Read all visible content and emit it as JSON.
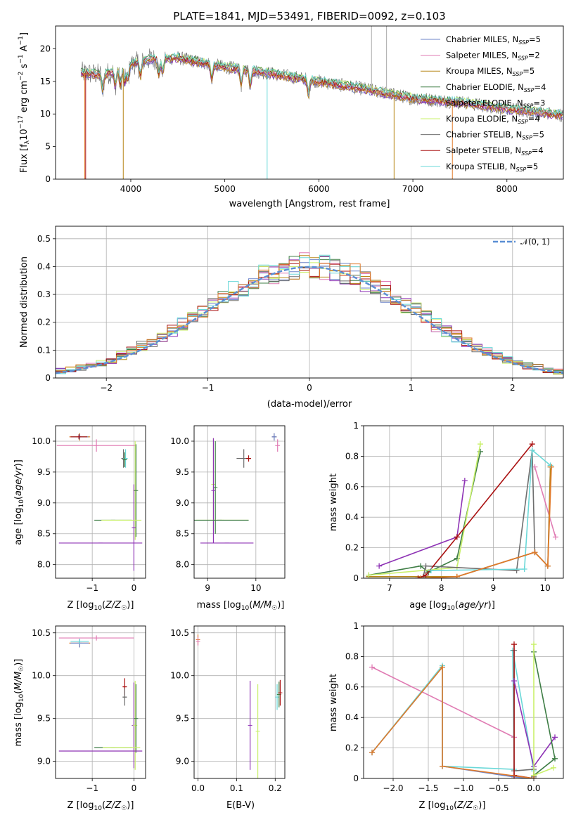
{
  "title": "PLATE=1841, MJD=53491, FIBERID=0092, z=0.103",
  "colors": {
    "chabrier_miles": "#6b83c8",
    "salpeter_miles": "#e07bb3",
    "kroupa_miles": "#b8871a",
    "chabrier_elodie": "#3e7d45",
    "salpeter_elodie": "#8e33b5",
    "kroupa_elodie": "#c9f06a",
    "chabrier_stelib": "#6e6e6e",
    "salpeter_stelib": "#aa1111",
    "kroupa_stelib": "#6ad8d8",
    "gaussian": "#5b8fd4",
    "orange_curve": "#e07a2a"
  },
  "chart_data": [
    {
      "id": "spectrum",
      "type": "line",
      "xlabel": "wavelength [Angstrom, rest frame]",
      "ylabel": "Flux [f_λ 10^-17 erg cm^-2 s^-1 A^-1]",
      "xlim": [
        3200,
        8600
      ],
      "ylim": [
        0,
        23.5
      ],
      "xticks": [
        4000,
        5000,
        6000,
        7000,
        8000
      ],
      "yticks": [
        0,
        5,
        10,
        15,
        20
      ],
      "grid": false,
      "legend_position": "top-right",
      "legend": [
        {
          "label": "Chabrier MILES, N",
          "sub": "SSP",
          "tail": "=5",
          "color": "#6b83c8"
        },
        {
          "label": "Salpeter MILES, N",
          "sub": "SSP",
          "tail": "=2",
          "color": "#e07bb3"
        },
        {
          "label": "Kroupa MILES, N",
          "sub": "SSP",
          "tail": "=5",
          "color": "#b8871a"
        },
        {
          "label": "Chabrier ELODIE, N",
          "sub": "SSP",
          "tail": "=4",
          "color": "#3e7d45"
        },
        {
          "label": "Salpeter ELODIE, N",
          "sub": "SSP",
          "tail": "=3",
          "color": "#8e33b5"
        },
        {
          "label": "Kroupa ELODIE, N",
          "sub": "SSP",
          "tail": "=4",
          "color": "#c9f06a"
        },
        {
          "label": "Chabrier STELIB, N",
          "sub": "SSP",
          "tail": "=5",
          "color": "#6e6e6e"
        },
        {
          "label": "Salpeter STELIB, N",
          "sub": "SSP",
          "tail": "=4",
          "color": "#aa1111"
        },
        {
          "label": "Kroupa STELIB, N",
          "sub": "SSP",
          "tail": "=5",
          "color": "#6ad8d8"
        }
      ],
      "data_trend": {
        "x": [
          3500,
          3700,
          3900,
          4000,
          4200,
          4500,
          5000,
          5500,
          6000,
          6500,
          7000,
          7500,
          8000,
          8600
        ],
        "y": [
          16.3,
          16.0,
          16.8,
          17.6,
          18.4,
          18.6,
          17.2,
          16.2,
          15.0,
          13.8,
          12.4,
          11.8,
          10.8,
          9.8
        ]
      },
      "spikes": [
        {
          "x": 3510,
          "y": 0,
          "color": "#e07a2a"
        },
        {
          "x": 3520,
          "y": 0,
          "color": "#aa1111"
        },
        {
          "x": 3920,
          "y": 0,
          "color": "#b8871a"
        },
        {
          "x": 5450,
          "y": 0,
          "color": "#6ad8d8"
        },
        {
          "x": 6800,
          "y": 0,
          "color": "#b8871a"
        },
        {
          "x": 7420,
          "y": 0,
          "color": "#e07a2a"
        },
        {
          "x": 6560,
          "y": 23.5,
          "color": "#aaaaaa"
        },
        {
          "x": 6720,
          "y": 23.5,
          "color": "#aaaaaa"
        }
      ]
    },
    {
      "id": "residual_hist",
      "type": "line",
      "xlabel": "(data-model)/error",
      "ylabel": "Normed distribution",
      "xlim": [
        -2.5,
        2.5
      ],
      "ylim": [
        0,
        0.545
      ],
      "xticks": [
        -2,
        -1,
        0,
        1,
        2
      ],
      "yticks": [
        0.0,
        0.1,
        0.2,
        0.3,
        0.4,
        0.5
      ],
      "grid": true,
      "legend_position": "top-right",
      "legend_label": "𝒩(0, 1)",
      "bin_width": 0.1,
      "gaussian": {
        "mean": 0,
        "sigma": 1
      }
    },
    {
      "id": "age_vs_Z",
      "type": "scatter",
      "xlabel": "Z [log10(Z/Z☉)]",
      "ylabel": "age  [log10(age/yr)]",
      "xlim": [
        -1.88,
        0.28
      ],
      "ylim": [
        7.78,
        10.25
      ],
      "xticks": [
        -1,
        0
      ],
      "yticks": [
        8.0,
        8.5,
        9.0,
        9.5,
        10.0
      ],
      "ytick_labels": [
        "8.0",
        "8.5",
        "9.0",
        "9.5",
        "10.0"
      ],
      "grid": true,
      "points": [
        {
          "x": -1.3,
          "y": 10.07,
          "xerr": 0.25,
          "yerr": 0.06,
          "color": "#e07a2a"
        },
        {
          "x": -1.3,
          "y": 10.07,
          "xerr": 0.22,
          "yerr": 0.05,
          "color": "#b8871a"
        },
        {
          "x": -1.3,
          "y": 10.07,
          "xerr": 0.2,
          "yerr": 0.04,
          "color": "#6b83c8"
        },
        {
          "x": -1.32,
          "y": 10.07,
          "xerr": 0.2,
          "yerr": 0.04,
          "color": "#aa1111"
        },
        {
          "x": -0.9,
          "y": 9.93,
          "xerr": 0.95,
          "yerr": 0.1,
          "color": "#e07bb3"
        },
        {
          "x": -0.25,
          "y": 9.72,
          "xerr": 0.05,
          "yerr": 0.15,
          "color": "#6e6e6e"
        },
        {
          "x": -0.2,
          "y": 9.72,
          "xerr": 0.05,
          "yerr": 0.15,
          "color": "#6ad8d8"
        },
        {
          "x": -0.22,
          "y": 9.7,
          "xerr": 0.05,
          "yerr": 0.12,
          "color": "#3e7d45"
        },
        {
          "x": 0.03,
          "y": 9.2,
          "xerr": 0.0,
          "yerr": 0.8,
          "color": "#c9f06a"
        },
        {
          "x": 0.05,
          "y": 9.2,
          "xerr": 0.0,
          "yerr": 0.75,
          "color": "#3e7d45"
        },
        {
          "x": 0.0,
          "y": 8.6,
          "xerr": 0.0,
          "yerr": 0.7,
          "color": "#8e33b5"
        },
        {
          "x": -0.5,
          "y": 8.72,
          "xerr": 0.45,
          "yerr": 0.0,
          "color": "#3e7d45"
        },
        {
          "x": -0.3,
          "y": 8.72,
          "xerr": 0.48,
          "yerr": 0.0,
          "color": "#c9f06a"
        },
        {
          "x": -0.8,
          "y": 8.35,
          "xerr": 1.0,
          "yerr": 0.0,
          "color": "#8e33b5"
        }
      ]
    },
    {
      "id": "age_vs_mass",
      "type": "scatter",
      "xlabel": "mass [log10(M/M☉)]",
      "ylabel": "",
      "xlim": [
        8.72,
        10.6
      ],
      "ylim": [
        7.78,
        10.25
      ],
      "xticks": [
        9,
        10
      ],
      "yticks": [
        8.0,
        8.5,
        9.0,
        9.5,
        10.0
      ],
      "ytick_labels": [
        "8.0",
        "8.5",
        "9.0",
        "9.5",
        "10.0"
      ],
      "grid": true,
      "points": [
        {
          "x": 10.38,
          "y": 10.07,
          "xerr": 0.05,
          "yerr": 0.06,
          "color": "#e07a2a"
        },
        {
          "x": 10.38,
          "y": 10.07,
          "xerr": 0.05,
          "yerr": 0.06,
          "color": "#6b83c8"
        },
        {
          "x": 10.45,
          "y": 9.93,
          "xerr": 0.05,
          "yerr": 0.1,
          "color": "#e07bb3"
        },
        {
          "x": 9.75,
          "y": 9.72,
          "xerr": 0.15,
          "yerr": 0.15,
          "color": "#6e6e6e"
        },
        {
          "x": 9.85,
          "y": 9.72,
          "xerr": 0.05,
          "yerr": 0.05,
          "color": "#aa1111"
        },
        {
          "x": 9.12,
          "y": 9.3,
          "xerr": 0.0,
          "yerr": 0.75,
          "color": "#c9f06a"
        },
        {
          "x": 9.16,
          "y": 9.25,
          "xerr": 0.0,
          "yerr": 0.75,
          "color": "#3e7d45"
        },
        {
          "x": 9.12,
          "y": 9.2,
          "xerr": 0.0,
          "yerr": 0.85,
          "color": "#8e33b5"
        },
        {
          "x": 9.3,
          "y": 8.72,
          "xerr": 0.55,
          "yerr": 0.0,
          "color": "#c9f06a"
        },
        {
          "x": 9.25,
          "y": 8.72,
          "xerr": 0.6,
          "yerr": 0.0,
          "color": "#3e7d45"
        },
        {
          "x": 9.4,
          "y": 8.35,
          "xerr": 0.55,
          "yerr": 0.0,
          "color": "#8e33b5"
        }
      ]
    },
    {
      "id": "weight_vs_age",
      "type": "line",
      "xlabel": "age  [log10(age/yr)]",
      "ylabel": "mass weight",
      "xlim": [
        6.5,
        10.35
      ],
      "ylim": [
        0,
        1.0
      ],
      "xticks": [
        7,
        8,
        9,
        10
      ],
      "yticks": [
        0.0,
        0.2,
        0.4,
        0.6,
        0.8,
        1.0
      ],
      "grid": true,
      "series": [
        {
          "color": "#6b83c8",
          "x": [
            6.6,
            8.3,
            9.8,
            10.05,
            10.1
          ],
          "y": [
            0.01,
            0.01,
            0.17,
            0.08,
            0.73
          ]
        },
        {
          "color": "#e07bb3",
          "x": [
            9.8,
            10.2
          ],
          "y": [
            0.73,
            0.27
          ]
        },
        {
          "color": "#b8871a",
          "x": [
            6.6,
            8.3,
            9.8,
            10.05,
            10.1
          ],
          "y": [
            0.01,
            0.01,
            0.17,
            0.08,
            0.73
          ]
        },
        {
          "color": "#3e7d45",
          "x": [
            6.6,
            7.6,
            7.75,
            8.3,
            8.75
          ],
          "y": [
            0.02,
            0.08,
            0.04,
            0.13,
            0.83
          ]
        },
        {
          "color": "#8e33b5",
          "x": [
            6.8,
            8.3,
            8.45
          ],
          "y": [
            0.08,
            0.27,
            0.64
          ]
        },
        {
          "color": "#c9f06a",
          "x": [
            6.6,
            8.3,
            8.75
          ],
          "y": [
            0.02,
            0.07,
            0.88
          ]
        },
        {
          "color": "#6e6e6e",
          "x": [
            7.65,
            7.7,
            9.45,
            9.75,
            9.8
          ],
          "y": [
            0.01,
            0.08,
            0.05,
            0.84,
            0.17
          ]
        },
        {
          "color": "#aa1111",
          "x": [
            7.55,
            7.7,
            8.3,
            9.75
          ],
          "y": [
            0.0,
            0.02,
            0.27,
            0.88
          ]
        },
        {
          "color": "#6ad8d8",
          "x": [
            7.8,
            9.6,
            9.75,
            10.1
          ],
          "y": [
            0.05,
            0.06,
            0.84,
            0.74
          ]
        },
        {
          "color": "#e07a2a",
          "x": [
            7.6,
            8.3,
            9.8,
            10.05,
            10.12
          ],
          "y": [
            0.0,
            0.01,
            0.17,
            0.08,
            0.73
          ]
        }
      ]
    },
    {
      "id": "mass_vs_Z",
      "type": "scatter",
      "xlabel": "Z [log10(Z/Z☉)]",
      "ylabel": "mass [log10(M/M☉)]",
      "xlim": [
        -1.88,
        0.28
      ],
      "ylim": [
        8.8,
        10.58
      ],
      "xticks": [
        -1,
        0
      ],
      "yticks": [
        9.0,
        9.5,
        10.0,
        10.5
      ],
      "ytick_labels": [
        "9.0",
        "9.5",
        "10.0",
        "10.5"
      ],
      "grid": true,
      "points": [
        {
          "x": -1.3,
          "y": 10.38,
          "xerr": 0.25,
          "yerr": 0.05,
          "color": "#e07a2a"
        },
        {
          "x": -1.3,
          "y": 10.38,
          "xerr": 0.22,
          "yerr": 0.05,
          "color": "#6b83c8"
        },
        {
          "x": -1.3,
          "y": 10.4,
          "xerr": 0.22,
          "yerr": 0.03,
          "color": "#6ad8d8"
        },
        {
          "x": -0.9,
          "y": 10.44,
          "xerr": 0.9,
          "yerr": 0.03,
          "color": "#e07bb3"
        },
        {
          "x": -0.22,
          "y": 9.87,
          "xerr": 0.05,
          "yerr": 0.1,
          "color": "#aa1111"
        },
        {
          "x": -0.22,
          "y": 9.75,
          "xerr": 0.05,
          "yerr": 0.1,
          "color": "#6e6e6e"
        },
        {
          "x": 0.0,
          "y": 9.42,
          "xerr": 0.0,
          "yerr": 0.5,
          "color": "#8e33b5"
        },
        {
          "x": 0.03,
          "y": 9.42,
          "xerr": 0.0,
          "yerr": 0.52,
          "color": "#c9f06a"
        },
        {
          "x": 0.05,
          "y": 9.5,
          "xerr": 0.0,
          "yerr": 0.4,
          "color": "#3e7d45"
        },
        {
          "x": -0.5,
          "y": 9.16,
          "xerr": 0.45,
          "yerr": 0.0,
          "color": "#3e7d45"
        },
        {
          "x": -0.3,
          "y": 9.16,
          "xerr": 0.45,
          "yerr": 0.0,
          "color": "#c9f06a"
        },
        {
          "x": -0.8,
          "y": 9.12,
          "xerr": 1.0,
          "yerr": 0.0,
          "color": "#8e33b5"
        }
      ]
    },
    {
      "id": "mass_vs_ebv",
      "type": "scatter",
      "xlabel": "E(B-V)",
      "ylabel": "",
      "xlim": [
        -0.01,
        0.225
      ],
      "ylim": [
        8.8,
        10.58
      ],
      "xticks": [
        0.0,
        0.1,
        0.2
      ],
      "xtick_labels": [
        "0.0",
        "0.1",
        "0.2"
      ],
      "yticks": [
        9.0,
        9.5,
        10.0,
        10.5
      ],
      "ytick_labels": [
        "9.0",
        "9.5",
        "10.0",
        "10.5"
      ],
      "grid": true,
      "points": [
        {
          "x": 0.0,
          "y": 10.42,
          "xerr": 0.0,
          "yerr": 0.06,
          "color": "#e07a2a"
        },
        {
          "x": 0.0,
          "y": 10.4,
          "xerr": 0.0,
          "yerr": 0.05,
          "color": "#e07bb3"
        },
        {
          "x": 0.135,
          "y": 9.42,
          "xerr": 0.0,
          "yerr": 0.52,
          "color": "#8e33b5"
        },
        {
          "x": 0.155,
          "y": 9.35,
          "xerr": 0.0,
          "yerr": 0.55,
          "color": "#c9f06a"
        },
        {
          "x": 0.205,
          "y": 9.75,
          "xerr": 0.0,
          "yerr": 0.15,
          "color": "#6ad8d8"
        },
        {
          "x": 0.21,
          "y": 9.78,
          "xerr": 0.0,
          "yerr": 0.15,
          "color": "#3e7d45"
        },
        {
          "x": 0.213,
          "y": 9.8,
          "xerr": 0.0,
          "yerr": 0.15,
          "color": "#aa1111"
        }
      ]
    },
    {
      "id": "weight_vs_Z",
      "type": "line",
      "xlabel": "Z [log10(Z/Z☉)]",
      "ylabel": "mass weight",
      "xlim": [
        -2.42,
        0.42
      ],
      "ylim": [
        0,
        1.0
      ],
      "xticks": [
        -2.0,
        -1.5,
        -1.0,
        -0.5,
        0.0
      ],
      "xtick_labels": [
        "−2.0",
        "−1.5",
        "−1.0",
        "−0.5",
        "0.0"
      ],
      "yticks": [
        0.0,
        0.2,
        0.4,
        0.6,
        0.8,
        1.0
      ],
      "grid": true,
      "series": [
        {
          "color": "#e07bb3",
          "x": [
            -2.3,
            -0.28
          ],
          "y": [
            0.73,
            0.27
          ]
        },
        {
          "color": "#6b83c8",
          "x": [
            -2.3,
            -1.3,
            -1.3,
            -0.28,
            0.0,
            0.0
          ],
          "y": [
            0.17,
            0.73,
            0.08,
            0.01,
            0.0,
            0.02
          ]
        },
        {
          "color": "#6ad8d8",
          "x": [
            -2.3,
            -1.3,
            -1.3,
            -0.28,
            -0.3,
            0.0,
            0.0
          ],
          "y": [
            0.17,
            0.74,
            0.08,
            0.06,
            0.84,
            0.05,
            0.0
          ]
        },
        {
          "color": "#6e6e6e",
          "x": [
            -0.28,
            -0.28,
            0.0,
            0.0
          ],
          "y": [
            0.84,
            0.05,
            0.06,
            0.01
          ]
        },
        {
          "color": "#aa1111",
          "x": [
            -0.28,
            -0.28,
            0.0
          ],
          "y": [
            0.88,
            0.02,
            0.0
          ]
        },
        {
          "color": "#8e33b5",
          "x": [
            -0.28,
            0.0,
            0.3
          ],
          "y": [
            0.64,
            0.08,
            0.27
          ]
        },
        {
          "color": "#3e7d45",
          "x": [
            0.0,
            0.3,
            0.0
          ],
          "y": [
            0.83,
            0.13,
            0.02
          ]
        },
        {
          "color": "#c9f06a",
          "x": [
            0.0,
            0.0,
            0.28
          ],
          "y": [
            0.88,
            0.02,
            0.07
          ]
        },
        {
          "color": "#e07a2a",
          "x": [
            -2.3,
            -1.3,
            -1.3,
            0.0
          ],
          "y": [
            0.17,
            0.73,
            0.08,
            0.0
          ]
        }
      ]
    }
  ]
}
